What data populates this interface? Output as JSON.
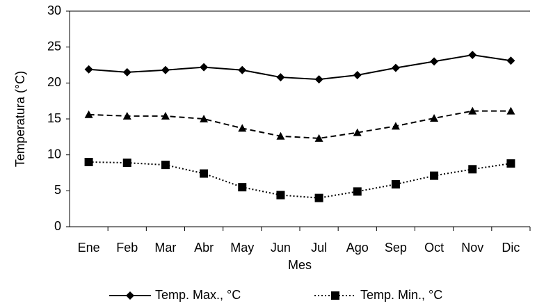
{
  "chart_data": {
    "type": "line",
    "x_label": "Mes",
    "y_label": "Temperatura (°C)",
    "categories": [
      "Ene",
      "Feb",
      "Mar",
      "Abr",
      "May",
      "Jun",
      "Jul",
      "Ago",
      "Sep",
      "Oct",
      "Nov",
      "Dic"
    ],
    "series": [
      {
        "name": "Temp. Max., °C",
        "color": "#000000",
        "marker": "diamond",
        "dash": "solid",
        "values": [
          21.9,
          21.5,
          21.8,
          22.2,
          21.8,
          20.8,
          20.5,
          21.1,
          22.1,
          23.0,
          23.9,
          23.1
        ]
      },
      {
        "color": "#000000",
        "marker": "triangle",
        "dash": "dashed",
        "values": [
          15.6,
          15.4,
          15.4,
          15.0,
          13.7,
          12.6,
          12.3,
          13.1,
          14.0,
          15.1,
          16.1,
          16.1
        ]
      },
      {
        "name": "Temp. Min., °C",
        "color": "#000000",
        "marker": "square",
        "dash": "dotted",
        "values": [
          9.0,
          8.9,
          8.6,
          7.4,
          5.5,
          4.4,
          4.0,
          4.9,
          5.9,
          7.1,
          8.0,
          8.8
        ]
      }
    ],
    "ylim": [
      0,
      30
    ],
    "yticks": [
      0,
      5,
      10,
      15,
      20,
      25,
      30
    ],
    "grid": false,
    "legend": "bottom"
  }
}
